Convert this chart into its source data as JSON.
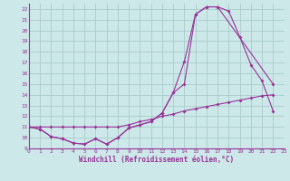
{
  "xlabel": "Windchill (Refroidissement éolien,°C)",
  "xlim": [
    0,
    23
  ],
  "ylim": [
    9,
    22.5
  ],
  "xticks": [
    0,
    1,
    2,
    3,
    4,
    5,
    6,
    7,
    8,
    9,
    10,
    11,
    12,
    13,
    14,
    15,
    16,
    17,
    18,
    19,
    20,
    21,
    22,
    23
  ],
  "yticks": [
    9,
    10,
    11,
    12,
    13,
    14,
    15,
    16,
    17,
    18,
    19,
    20,
    21,
    22
  ],
  "bg_color": "#cce8e8",
  "grid_color": "#aacccc",
  "line_color": "#993399",
  "curve1_x": [
    0,
    1,
    2,
    3,
    4,
    5,
    6,
    7,
    8,
    9,
    10,
    11,
    12,
    13,
    14,
    15,
    16,
    17,
    22
  ],
  "curve1_y": [
    11.0,
    10.8,
    10.1,
    9.9,
    9.5,
    9.4,
    9.9,
    9.4,
    10.0,
    10.9,
    11.2,
    11.5,
    12.3,
    14.2,
    17.1,
    21.5,
    22.2,
    22.2,
    15.0
  ],
  "curve2_x": [
    0,
    1,
    2,
    3,
    4,
    5,
    6,
    7,
    8,
    9,
    10,
    11,
    12,
    13,
    14,
    15,
    16,
    17,
    18,
    19,
    20,
    21,
    22
  ],
  "curve2_y": [
    11.0,
    10.8,
    10.1,
    9.9,
    9.5,
    9.4,
    9.9,
    9.4,
    10.0,
    10.9,
    11.2,
    11.5,
    12.3,
    14.2,
    15.0,
    21.5,
    22.2,
    22.2,
    21.8,
    19.4,
    16.8,
    15.3,
    12.5
  ],
  "curve3_x": [
    0,
    1,
    2,
    3,
    4,
    5,
    6,
    7,
    8,
    9,
    10,
    11,
    12,
    13,
    14,
    15,
    16,
    17,
    18,
    19,
    20,
    21,
    22
  ],
  "curve3_y": [
    11.0,
    11.0,
    11.0,
    11.0,
    11.0,
    11.0,
    11.0,
    11.0,
    11.0,
    11.2,
    11.5,
    11.7,
    12.0,
    12.2,
    12.5,
    12.7,
    12.9,
    13.1,
    13.3,
    13.5,
    13.7,
    13.9,
    14.0
  ]
}
